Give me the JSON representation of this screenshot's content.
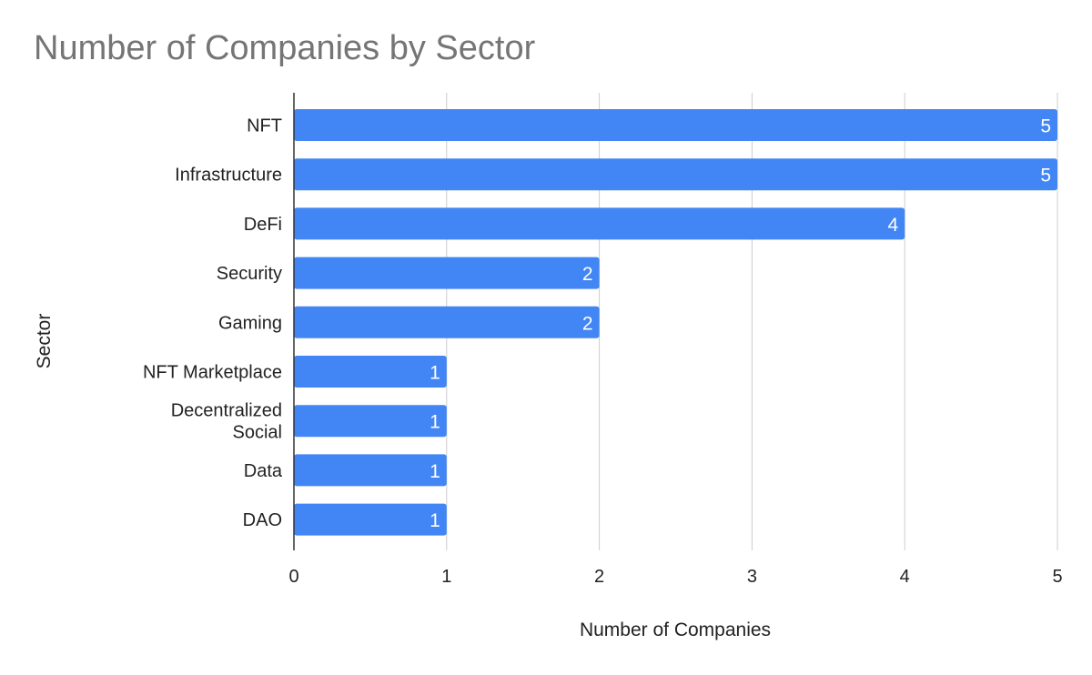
{
  "chart_data": {
    "type": "bar",
    "orientation": "horizontal",
    "title": "Number of Companies by Sector",
    "xlabel": "Number of Companies",
    "ylabel": "Sector",
    "categories": [
      "NFT",
      "Infrastructure",
      "DeFi",
      "Security",
      "Gaming",
      "NFT Marketplace",
      "Decentralized Social",
      "Data",
      "DAO"
    ],
    "category_lines": [
      [
        "NFT"
      ],
      [
        "Infrastructure"
      ],
      [
        "DeFi"
      ],
      [
        "Security"
      ],
      [
        "Gaming"
      ],
      [
        "NFT Marketplace"
      ],
      [
        "Decentralized",
        "Social"
      ],
      [
        "Data"
      ],
      [
        "DAO"
      ]
    ],
    "values": [
      5,
      5,
      4,
      2,
      2,
      1,
      1,
      1,
      1
    ],
    "data_labels": [
      "5",
      "5",
      "4",
      "2",
      "2",
      "1",
      "1",
      "1",
      "1"
    ],
    "xlim": [
      0,
      5
    ],
    "xticks": [
      "0",
      "1",
      "2",
      "3",
      "4",
      "5"
    ],
    "grid": true,
    "legend": "none",
    "colors": {
      "bar": "#4285f4",
      "grid": "#cccccc",
      "axis": "#333333",
      "title": "#757575",
      "text": "#222222",
      "data_label": "#ffffff"
    }
  }
}
